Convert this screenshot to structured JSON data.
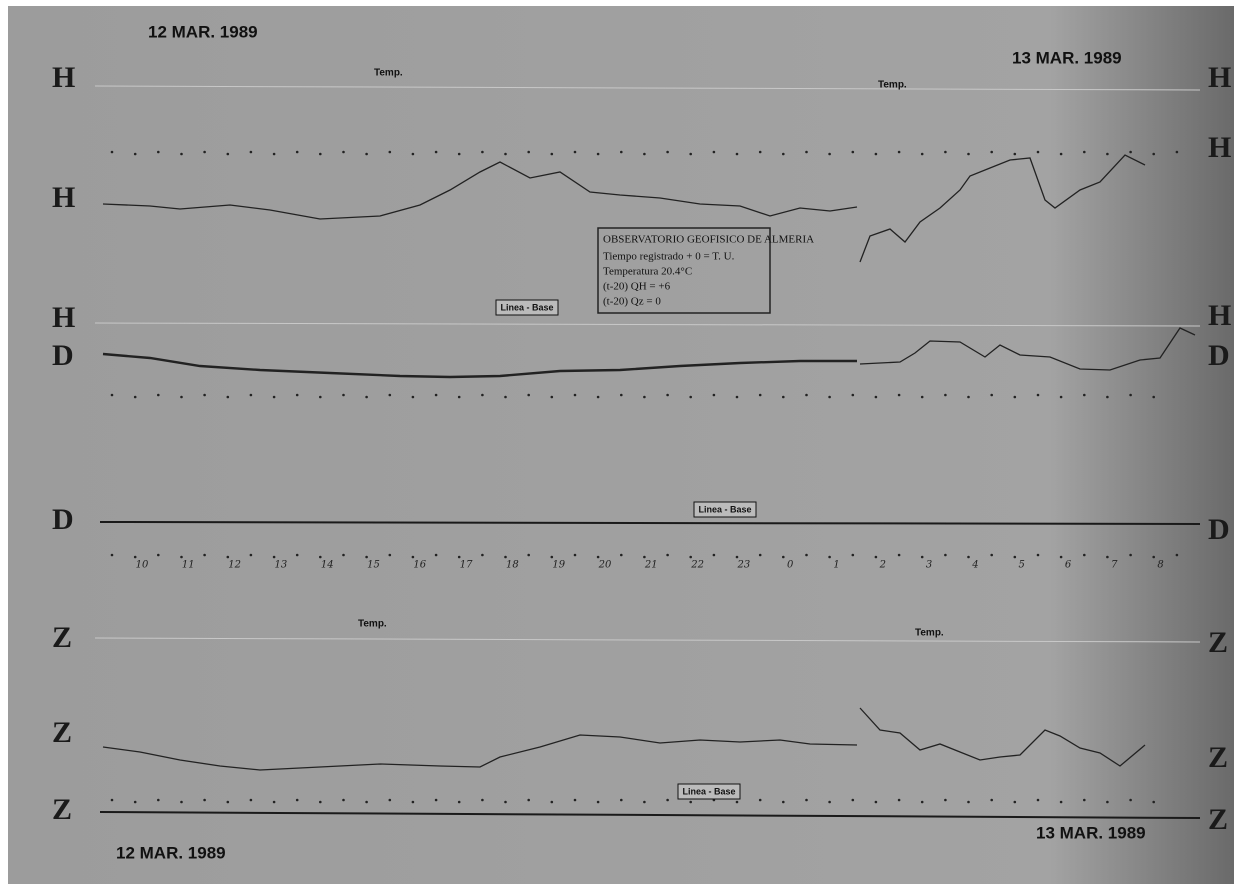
{
  "dates": {
    "top_left": "12 MAR. 1989",
    "top_right": "13 MAR. 1989",
    "bottom_left": "12 MAR. 1989",
    "bottom_right": "13 MAR. 1989"
  },
  "channel_labels_left": [
    "H",
    "H",
    "H",
    "D",
    "D",
    "Z",
    "Z",
    "Z"
  ],
  "channel_labels_right": [
    "H",
    "H",
    "H",
    "D",
    "D",
    "Z",
    "Z",
    "Z"
  ],
  "temp_stamps": [
    "Temp.",
    "Temp.",
    "Temp.",
    "Temp."
  ],
  "stamp": {
    "title": "OBSERVATORIO GEOFISICO DE ALMERIA",
    "lines": [
      "Tiempo registrado + 0 = T. U.",
      "Temperatura 20.4°C",
      "(t-20) QH = +6",
      "(t-20) Qz = 0"
    ]
  },
  "baseline_labels": [
    "Linea - Base",
    "Linea - Base",
    "Linea - Base"
  ],
  "hour_labels": [
    "10",
    "11",
    "12",
    "13",
    "14",
    "15",
    "16",
    "17",
    "18",
    "19",
    "20",
    "21",
    "22",
    "23",
    "0",
    "1",
    "2",
    "3",
    "4",
    "5",
    "6",
    "7",
    "8"
  ]
}
